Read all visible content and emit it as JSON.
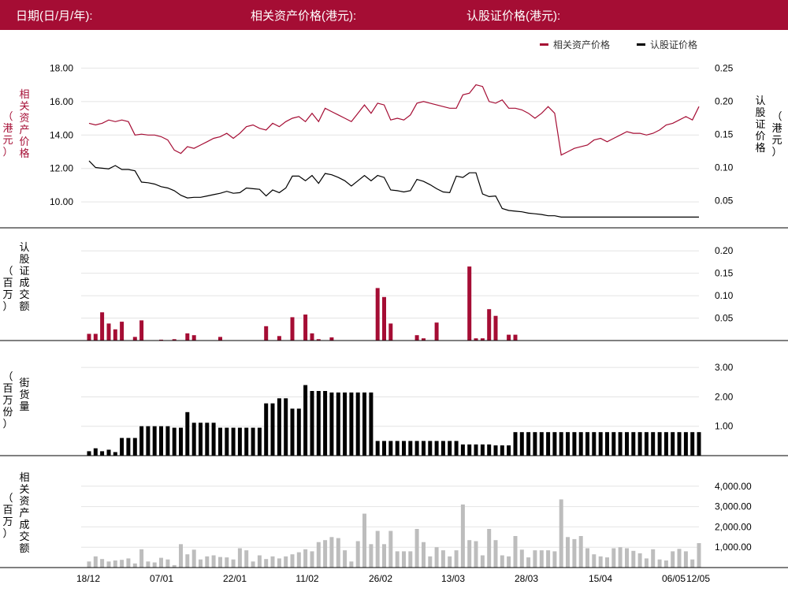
{
  "header": {
    "date_label": "日期(日/月/年):",
    "underlying_label": "相关资产价格(港元):",
    "warrant_label": "认股证价格(港元):"
  },
  "legend": {
    "underlying": "相关资产价格",
    "warrant": "认股证价格"
  },
  "axis_titles": {
    "underlying_price_main": "相关资产价格",
    "underlying_price_unit": "（港元）",
    "warrant_price_main": "认股证价格",
    "warrant_price_unit": "（港元）",
    "warrant_turnover_main": "认股证成交额",
    "warrant_turnover_unit": "（百万）",
    "outstanding_main": "街货量",
    "outstanding_unit": "（百万份）",
    "underlying_turnover_main": "相关资产成交额",
    "underlying_turnover_unit": "（百万）"
  },
  "colors": {
    "header_bg": "#a50d34",
    "underlying": "#a50d34",
    "warrant": "#000000",
    "turnover_bar": "#a50d34",
    "outstanding_bar": "#000000",
    "underlying_turnover_bar": "#bdbdbd"
  },
  "chart_data": [
    {
      "type": "line",
      "name": "price",
      "x_ticks": [
        "18/12",
        "07/01",
        "22/01",
        "11/02",
        "26/02",
        "13/03",
        "28/03",
        "15/04",
        "06/05",
        "12/05"
      ],
      "left_axis": {
        "ticks": [
          "10.00",
          "12.00",
          "14.00",
          "16.00",
          "18.00"
        ],
        "ylim": [
          8.5,
          18.3
        ]
      },
      "right_axis": {
        "ticks": [
          "0.05",
          "0.10",
          "0.15",
          "0.20",
          "0.25"
        ],
        "ylim": [
          0.01,
          0.258
        ]
      },
      "series": [
        {
          "name": "相关资产价格",
          "axis": "left",
          "values": [
            14.7,
            14.6,
            14.7,
            14.9,
            14.8,
            14.9,
            14.8,
            14.0,
            14.05,
            14.0,
            14.0,
            13.9,
            13.7,
            13.1,
            12.9,
            13.3,
            13.2,
            13.4,
            13.6,
            13.8,
            13.9,
            14.1,
            13.8,
            14.1,
            14.5,
            14.6,
            14.4,
            14.3,
            14.7,
            14.5,
            14.8,
            15.0,
            15.1,
            14.8,
            15.3,
            14.8,
            15.6,
            15.4,
            15.2,
            15.0,
            14.8,
            15.3,
            15.8,
            15.3,
            15.9,
            15.8,
            14.9,
            15.0,
            14.9,
            15.2,
            15.9,
            16.0,
            15.9,
            15.8,
            15.7,
            15.6,
            15.6,
            16.4,
            16.5,
            17.0,
            16.9,
            16.0,
            15.9,
            16.1,
            15.6,
            15.6,
            15.5,
            15.3,
            15.0,
            15.3,
            15.7,
            15.3,
            12.8,
            13.0,
            13.2,
            13.3,
            13.4,
            13.7,
            13.8,
            13.6,
            13.8,
            14.0,
            14.2,
            14.1,
            14.1,
            14.0,
            14.1,
            14.3,
            14.6,
            14.7,
            14.9,
            15.1,
            14.9,
            15.7
          ]
        },
        {
          "name": "认股证价格",
          "axis": "right",
          "values": [
            0.11,
            0.1,
            0.099,
            0.098,
            0.103,
            0.097,
            0.097,
            0.095,
            0.078,
            0.077,
            0.075,
            0.071,
            0.069,
            0.065,
            0.058,
            0.054,
            0.055,
            0.055,
            0.057,
            0.059,
            0.061,
            0.064,
            0.061,
            0.062,
            0.069,
            0.068,
            0.067,
            0.057,
            0.066,
            0.062,
            0.069,
            0.087,
            0.087,
            0.08,
            0.088,
            0.076,
            0.091,
            0.089,
            0.085,
            0.08,
            0.072,
            0.08,
            0.088,
            0.08,
            0.088,
            0.085,
            0.066,
            0.065,
            0.063,
            0.065,
            0.082,
            0.079,
            0.074,
            0.068,
            0.063,
            0.062,
            0.087,
            0.085,
            0.092,
            0.092,
            0.06,
            0.056,
            0.057,
            0.038,
            0.035,
            0.034,
            0.033,
            0.031,
            0.03,
            0.029,
            0.027,
            0.027,
            0.025,
            0.025,
            0.025,
            0.025,
            0.025,
            0.025,
            0.025,
            0.025,
            0.025,
            0.025,
            0.025,
            0.025,
            0.025,
            0.025,
            0.025,
            0.025,
            0.025,
            0.025,
            0.025,
            0.025,
            0.025,
            0.025
          ]
        }
      ]
    },
    {
      "type": "bar",
      "name": "warrant_turnover",
      "right_axis": {
        "ticks": [
          "0.05",
          "0.10",
          "0.15",
          "0.20"
        ],
        "ylim": [
          0,
          0.232
        ]
      },
      "values": [
        0.015,
        0.015,
        0.063,
        0.038,
        0.025,
        0.042,
        0,
        0.008,
        0.045,
        0,
        0,
        0.002,
        0,
        0.003,
        0,
        0.016,
        0.012,
        0,
        0,
        0,
        0.008,
        0,
        0,
        0,
        0,
        0,
        0,
        0.032,
        0,
        0.01,
        0,
        0.052,
        0,
        0.058,
        0.016,
        0.003,
        0,
        0.007,
        0,
        0,
        0,
        0,
        0,
        0,
        0.117,
        0.097,
        0.038,
        0,
        0,
        0,
        0.012,
        0.005,
        0,
        0.04,
        0,
        0,
        0,
        0,
        0.165,
        0.005,
        0.005,
        0.07,
        0.055,
        0,
        0.013,
        0.013,
        0,
        0,
        0,
        0,
        0,
        0,
        0,
        0,
        0,
        0,
        0,
        0,
        0,
        0,
        0,
        0,
        0,
        0,
        0,
        0,
        0,
        0,
        0,
        0,
        0,
        0,
        0,
        0
      ]
    },
    {
      "type": "bar",
      "name": "outstanding",
      "right_axis": {
        "ticks": [
          "1.00",
          "2.00",
          "3.00"
        ],
        "ylim": [
          0,
          3.3
        ]
      },
      "values": [
        0.15,
        0.25,
        0.15,
        0.2,
        0.12,
        0.6,
        0.6,
        0.6,
        1.0,
        1.0,
        1.0,
        1.0,
        1.0,
        0.95,
        0.95,
        1.48,
        1.12,
        1.12,
        1.12,
        1.12,
        0.95,
        0.95,
        0.95,
        0.95,
        0.95,
        0.95,
        0.95,
        1.78,
        1.78,
        1.95,
        1.95,
        1.6,
        1.6,
        2.4,
        2.2,
        2.2,
        2.2,
        2.15,
        2.15,
        2.15,
        2.15,
        2.15,
        2.15,
        2.15,
        0.5,
        0.5,
        0.5,
        0.5,
        0.5,
        0.5,
        0.5,
        0.5,
        0.5,
        0.5,
        0.5,
        0.5,
        0.5,
        0.38,
        0.38,
        0.38,
        0.38,
        0.38,
        0.35,
        0.35,
        0.35,
        0.8,
        0.8,
        0.8,
        0.8,
        0.8,
        0.8,
        0.8,
        0.8,
        0.8,
        0.8,
        0.8,
        0.8,
        0.8,
        0.8,
        0.8,
        0.8,
        0.8,
        0.8,
        0.8,
        0.8,
        0.8,
        0.8,
        0.8,
        0.8,
        0.8,
        0.8,
        0.8,
        0.8,
        0.8
      ]
    },
    {
      "type": "bar",
      "name": "underlying_turnover",
      "right_axis": {
        "ticks": [
          "1,000.00",
          "2,000.00",
          "3,000.00",
          "4,000.00"
        ],
        "ylim": [
          0,
          4650
        ]
      },
      "values": [
        300,
        550,
        420,
        300,
        350,
        380,
        450,
        200,
        900,
        300,
        250,
        480,
        400,
        120,
        1150,
        650,
        880,
        400,
        550,
        600,
        520,
        500,
        400,
        950,
        850,
        300,
        600,
        420,
        550,
        450,
        550,
        650,
        750,
        900,
        800,
        1250,
        1350,
        1500,
        1450,
        850,
        300,
        1300,
        2650,
        1150,
        1800,
        1150,
        1800,
        800,
        800,
        800,
        1900,
        1250,
        550,
        1000,
        850,
        550,
        850,
        3100,
        1350,
        1300,
        600,
        1900,
        1350,
        600,
        550,
        1550,
        880,
        500,
        850,
        850,
        850,
        800,
        3350,
        1500,
        1400,
        1550,
        950,
        650,
        550,
        500,
        950,
        1000,
        950,
        820,
        700,
        450,
        900,
        400,
        350,
        800,
        920,
        800,
        400,
        1200
      ]
    }
  ]
}
